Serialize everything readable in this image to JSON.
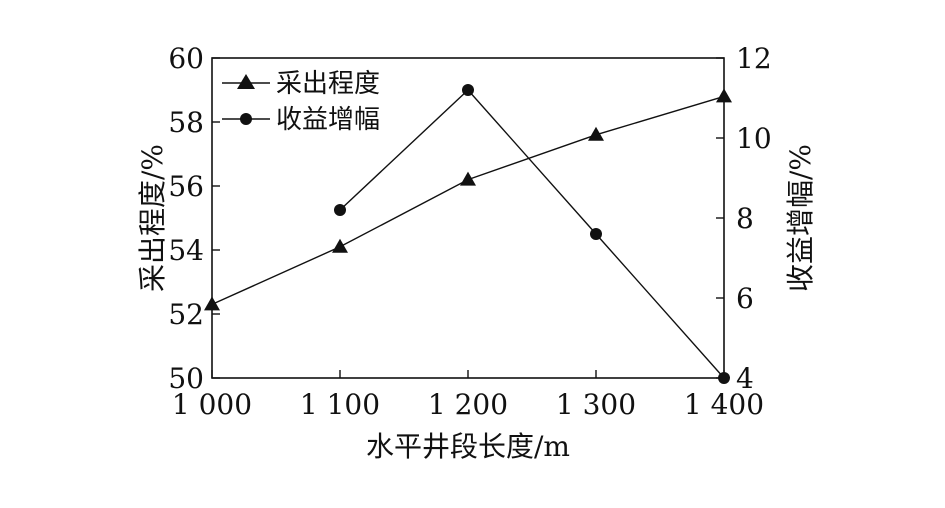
{
  "chart_data": {
    "type": "line",
    "xlabel": "水平井段长度/m",
    "ylabel_left": "采出程度/%",
    "ylabel_right": "收益增幅/%",
    "x_ticks": [
      "1 000",
      "1 100",
      "1 200",
      "1 300",
      "1 400"
    ],
    "x_tick_values": [
      1000,
      1100,
      1200,
      1300,
      1400
    ],
    "y_left_ticks": [
      "50",
      "52",
      "54",
      "56",
      "58",
      "60"
    ],
    "y_right_ticks": [
      "4",
      "6",
      "8",
      "10",
      "12"
    ],
    "xlim": [
      1000,
      1400
    ],
    "ylim_left": [
      50,
      60
    ],
    "ylim_right": [
      4,
      12
    ],
    "grid": false,
    "legend_position": "top-left",
    "series": [
      {
        "name": "采出程度",
        "axis": "left",
        "marker": "triangle",
        "x": [
          1000,
          1100,
          1200,
          1300,
          1400
        ],
        "y": [
          52.3,
          54.1,
          56.2,
          57.6,
          58.8
        ]
      },
      {
        "name": "收益增幅",
        "axis": "right",
        "marker": "circle",
        "x": [
          1100,
          1200,
          1300,
          1400
        ],
        "y": [
          8.2,
          11.2,
          7.6,
          4.0
        ]
      }
    ]
  }
}
